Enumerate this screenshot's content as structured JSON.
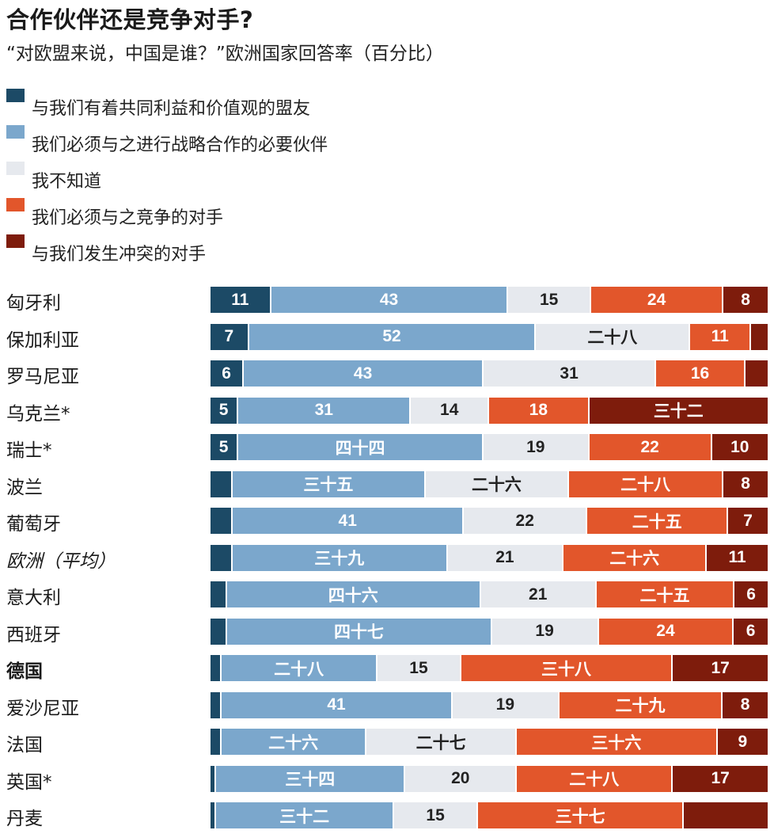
{
  "title": "合作伙伴还是竞争对手?",
  "subtitle": "“对欧盟来说，中国是谁？”欧洲国家回答率（百分比）",
  "colors": {
    "ally": "#1c4a66",
    "partner": "#7ba7cc",
    "dontknow": "#e6e9ee",
    "competitor": "#e2562b",
    "rival": "#7e1c0c"
  },
  "chart_data": {
    "type": "bar",
    "orientation": "horizontal",
    "stacked": true,
    "unit": "%",
    "legend": [
      {
        "key": "ally",
        "label": "与我们有着共同利益和价值观的盟友"
      },
      {
        "key": "partner",
        "label": "我们必须与之进行战略合作的必要伙伴"
      },
      {
        "key": "dontknow",
        "label": "我不知道"
      },
      {
        "key": "competitor",
        "label": "我们必须与之竞争的对手"
      },
      {
        "key": "rival",
        "label": "与我们发生冲突的对手"
      }
    ],
    "rows": [
      {
        "name": "匈牙利",
        "values": [
          11,
          43,
          15,
          24,
          8
        ],
        "labels": [
          "11",
          "43",
          "15",
          "24",
          "8"
        ]
      },
      {
        "name": "保加利亚",
        "values": [
          7,
          52,
          28,
          11,
          3
        ],
        "labels": [
          "7",
          "52",
          "二十八",
          "11",
          ""
        ]
      },
      {
        "name": "罗马尼亚",
        "values": [
          6,
          43,
          31,
          16,
          4
        ],
        "labels": [
          "6",
          "43",
          "31",
          "16",
          ""
        ]
      },
      {
        "name": "乌克兰*",
        "values": [
          5,
          31,
          14,
          18,
          32
        ],
        "labels": [
          "5",
          "31",
          "14",
          "18",
          "三十二"
        ]
      },
      {
        "name": "瑞士*",
        "values": [
          5,
          44,
          19,
          22,
          10
        ],
        "labels": [
          "5",
          "四十四",
          "19",
          "22",
          "10"
        ]
      },
      {
        "name": "波兰",
        "values": [
          4,
          35,
          26,
          28,
          8
        ],
        "labels": [
          "",
          "三十五",
          "二十六",
          "二十八",
          "8"
        ]
      },
      {
        "name": "葡萄牙",
        "values": [
          4,
          41,
          22,
          25,
          7
        ],
        "labels": [
          "",
          "41",
          "22",
          "二十五",
          "7"
        ]
      },
      {
        "name": "欧洲（平均）",
        "values": [
          4,
          39,
          21,
          26,
          11
        ],
        "labels": [
          "",
          "三十九",
          "21",
          "二十六",
          "11"
        ],
        "style": "italic"
      },
      {
        "name": "意大利",
        "values": [
          3,
          46,
          21,
          25,
          6
        ],
        "labels": [
          "",
          "四十六",
          "21",
          "二十五",
          "6"
        ]
      },
      {
        "name": "西班牙",
        "values": [
          3,
          47,
          19,
          24,
          6
        ],
        "labels": [
          "",
          "四十七",
          "19",
          "24",
          "6"
        ]
      },
      {
        "name": "德国",
        "values": [
          2,
          28,
          15,
          38,
          17
        ],
        "labels": [
          "",
          "二十八",
          "15",
          "三十八",
          "17"
        ],
        "style": "bold"
      },
      {
        "name": "爱沙尼亚",
        "values": [
          2,
          41,
          19,
          29,
          8
        ],
        "labels": [
          "",
          "41",
          "19",
          "二十九",
          "8"
        ]
      },
      {
        "name": "法国",
        "values": [
          2,
          26,
          27,
          36,
          9
        ],
        "labels": [
          "",
          "二十六",
          "二十七",
          "三十六",
          "9"
        ]
      },
      {
        "name": "英国*",
        "values": [
          1,
          34,
          20,
          28,
          17
        ],
        "labels": [
          "",
          "三十四",
          "20",
          "二十八",
          "17"
        ]
      },
      {
        "name": "丹麦",
        "values": [
          1,
          32,
          15,
          37,
          15
        ],
        "labels": [
          "",
          "三十二",
          "15",
          "三十七",
          ""
        ]
      }
    ]
  }
}
